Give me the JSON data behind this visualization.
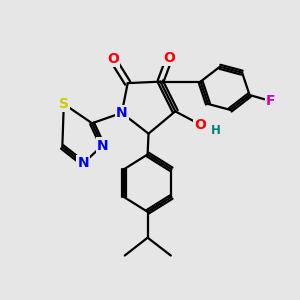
{
  "bg_color": "#e6e6e6",
  "bond_color": "#000000",
  "bond_width": 1.6,
  "atom_colors": {
    "O": "#ff0000",
    "N": "#0000ff",
    "S": "#cccc00",
    "F": "#cc00cc",
    "H": "#008080",
    "C": "#000000"
  },
  "font_size_atom": 10,
  "font_size_small": 8.5
}
